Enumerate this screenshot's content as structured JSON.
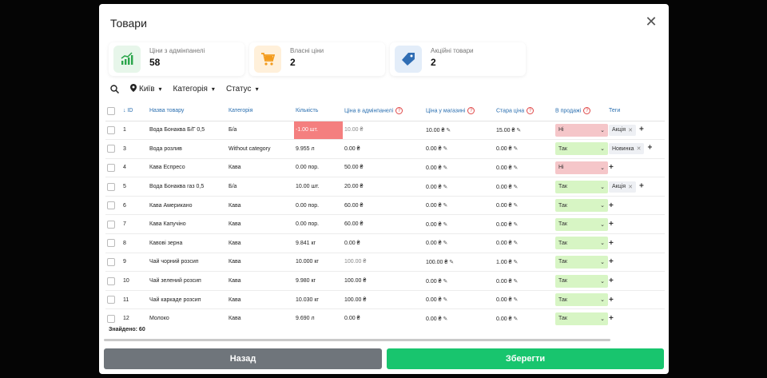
{
  "modal": {
    "title": "Товари",
    "close_icon": "close-icon"
  },
  "cards": [
    {
      "label": "Ціни з адмінпанелі",
      "value": "58",
      "icon": "chart-growth-icon",
      "color": "#e7f6ea",
      "icon_color": "#2aa54a"
    },
    {
      "label": "Власні ціни",
      "value": "2",
      "icon": "cart-icon",
      "color": "#fff0da",
      "icon_color": "#f39b1d"
    },
    {
      "label": "Акційні товари",
      "value": "2",
      "icon": "price-tag-icon",
      "color": "#e3edf9",
      "icon_color": "#2f6db4"
    }
  ],
  "filters": {
    "city": "Київ",
    "category": "Категорія",
    "status": "Статус"
  },
  "table": {
    "headers": {
      "id": "ID",
      "name": "Назва товару",
      "category": "Категорія",
      "qty": "Кількість",
      "admin_price": "Ціна в адмінпанелі",
      "shop_price": "Ціна у магазині",
      "old_price": "Стара ціна",
      "on_sale": "В продажі",
      "tags": "Теги"
    },
    "rows": [
      {
        "id": "1",
        "name": "Вода Бонаква Б/Г 0,5",
        "category": "Б/а",
        "qty": "-1.00 шт.",
        "qty_negative": true,
        "admin_price": "10.00 ₴",
        "admin_grey": true,
        "shop_price": "10.00 ₴",
        "old_price": "15.00 ₴",
        "on_sale": "Ні",
        "tags": [
          "Акція"
        ]
      },
      {
        "id": "3",
        "name": "Вода розлив",
        "category": "Without category",
        "qty": "9.955 л",
        "qty_negative": false,
        "admin_price": "0.00 ₴",
        "admin_grey": false,
        "shop_price": "0.00 ₴",
        "old_price": "0.00 ₴",
        "on_sale": "Так",
        "tags": [
          "Новинка"
        ]
      },
      {
        "id": "4",
        "name": "Кава Еспресо",
        "category": "Кава",
        "qty": "0.00 пор.",
        "qty_negative": false,
        "admin_price": "50.00 ₴",
        "admin_grey": false,
        "shop_price": "0.00 ₴",
        "old_price": "0.00 ₴",
        "on_sale": "Ні",
        "tags": []
      },
      {
        "id": "5",
        "name": "Вода Бонаква газ 0,5",
        "category": "Б/а",
        "qty": "10.00 шт.",
        "qty_negative": false,
        "admin_price": "20.00 ₴",
        "admin_grey": false,
        "shop_price": "0.00 ₴",
        "old_price": "0.00 ₴",
        "on_sale": "Так",
        "tags": [
          "Акція"
        ]
      },
      {
        "id": "6",
        "name": "Кава Американо",
        "category": "Кава",
        "qty": "0.00 пор.",
        "qty_negative": false,
        "admin_price": "60.00 ₴",
        "admin_grey": false,
        "shop_price": "0.00 ₴",
        "old_price": "0.00 ₴",
        "on_sale": "Так",
        "tags": []
      },
      {
        "id": "7",
        "name": "Кава Капучіно",
        "category": "Кава",
        "qty": "0.00 пор.",
        "qty_negative": false,
        "admin_price": "60.00 ₴",
        "admin_grey": false,
        "shop_price": "0.00 ₴",
        "old_price": "0.00 ₴",
        "on_sale": "Так",
        "tags": []
      },
      {
        "id": "8",
        "name": "Кавові зерна",
        "category": "Кава",
        "qty": "9.841 кг",
        "qty_negative": false,
        "admin_price": "0.00 ₴",
        "admin_grey": false,
        "shop_price": "0.00 ₴",
        "old_price": "0.00 ₴",
        "on_sale": "Так",
        "tags": []
      },
      {
        "id": "9",
        "name": "Чай чорний розсип",
        "category": "Кава",
        "qty": "10.000 кг",
        "qty_negative": false,
        "admin_price": "100.00 ₴",
        "admin_grey": true,
        "shop_price": "100.00 ₴",
        "old_price": "1.00 ₴",
        "on_sale": "Так",
        "tags": []
      },
      {
        "id": "10",
        "name": "Чай зелений розсип",
        "category": "Кава",
        "qty": "9.980 кг",
        "qty_negative": false,
        "admin_price": "100.00 ₴",
        "admin_grey": false,
        "shop_price": "0.00 ₴",
        "old_price": "0.00 ₴",
        "on_sale": "Так",
        "tags": []
      },
      {
        "id": "11",
        "name": "Чай каркаде розсип",
        "category": "Кава",
        "qty": "10.030 кг",
        "qty_negative": false,
        "admin_price": "100.00 ₴",
        "admin_grey": false,
        "shop_price": "0.00 ₴",
        "old_price": "0.00 ₴",
        "on_sale": "Так",
        "tags": []
      },
      {
        "id": "12",
        "name": "Молоко",
        "category": "Кава",
        "qty": "9.690 л",
        "qty_negative": false,
        "admin_price": "0.00 ₴",
        "admin_grey": false,
        "shop_price": "0.00 ₴",
        "old_price": "0.00 ₴",
        "on_sale": "Так",
        "tags": []
      }
    ]
  },
  "found_label": "Знайдено: 60",
  "buttons": {
    "back": "Назад",
    "save": "Зберегти"
  }
}
